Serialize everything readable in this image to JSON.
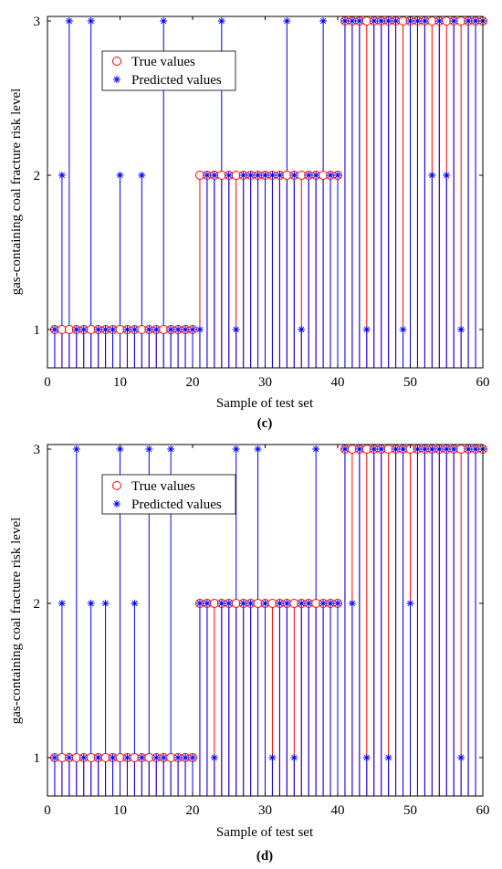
{
  "colors": {
    "true_values": "#ff0000",
    "predicted_values": "#0000ff"
  },
  "panels": [
    {
      "tag": "(c)"
    },
    {
      "tag": "(d)"
    }
  ],
  "chart_data": [
    {
      "type": "stem",
      "xlabel": "Sample of test set",
      "ylabel": "gas-containing coal fracture risk level",
      "xlim": [
        0,
        60
      ],
      "ylim": [
        0.75,
        3
      ],
      "xticks": [
        0,
        10,
        20,
        30,
        40,
        50,
        60
      ],
      "yticks": [
        1,
        2,
        3
      ],
      "legend_position": "top-left",
      "series": [
        {
          "name": "True values",
          "marker": "circle",
          "x": [
            1,
            2,
            3,
            4,
            5,
            6,
            7,
            8,
            9,
            10,
            11,
            12,
            13,
            14,
            15,
            16,
            17,
            18,
            19,
            20,
            21,
            22,
            23,
            24,
            25,
            26,
            27,
            28,
            29,
            30,
            31,
            32,
            33,
            34,
            35,
            36,
            37,
            38,
            39,
            40,
            41,
            42,
            43,
            44,
            45,
            46,
            47,
            48,
            49,
            50,
            51,
            52,
            53,
            54,
            55,
            56,
            57,
            58,
            59,
            60
          ],
          "values": [
            1,
            1,
            1,
            1,
            1,
            1,
            1,
            1,
            1,
            1,
            1,
            1,
            1,
            1,
            1,
            1,
            1,
            1,
            1,
            1,
            2,
            2,
            2,
            2,
            2,
            2,
            2,
            2,
            2,
            2,
            2,
            2,
            2,
            2,
            2,
            2,
            2,
            2,
            2,
            2,
            3,
            3,
            3,
            3,
            3,
            3,
            3,
            3,
            3,
            3,
            3,
            3,
            3,
            3,
            3,
            3,
            3,
            3,
            3,
            3
          ]
        },
        {
          "name": "Predicted values",
          "marker": "asterisk",
          "x": [
            1,
            2,
            3,
            4,
            5,
            6,
            7,
            8,
            9,
            10,
            11,
            12,
            13,
            14,
            15,
            16,
            17,
            18,
            19,
            20,
            21,
            22,
            23,
            24,
            25,
            26,
            27,
            28,
            29,
            30,
            31,
            32,
            33,
            34,
            35,
            36,
            37,
            38,
            39,
            40,
            41,
            42,
            43,
            44,
            45,
            46,
            47,
            48,
            49,
            50,
            51,
            52,
            53,
            54,
            55,
            56,
            57,
            58,
            59,
            60
          ],
          "values": [
            1,
            2,
            3,
            1,
            1,
            3,
            1,
            1,
            1,
            2,
            1,
            1,
            2,
            1,
            1,
            3,
            1,
            1,
            1,
            1,
            1,
            2,
            2,
            3,
            2,
            1,
            2,
            2,
            2,
            2,
            2,
            2,
            3,
            2,
            1,
            2,
            2,
            3,
            2,
            2,
            3,
            3,
            3,
            1,
            3,
            3,
            3,
            3,
            1,
            3,
            3,
            3,
            2,
            3,
            2,
            3,
            1,
            3,
            3,
            3
          ]
        }
      ]
    },
    {
      "type": "stem",
      "xlabel": "Sample of test set",
      "ylabel": "gas-containing coal fracture risk level",
      "xlim": [
        0,
        60
      ],
      "ylim": [
        0.75,
        3
      ],
      "xticks": [
        0,
        10,
        20,
        30,
        40,
        50,
        60
      ],
      "yticks": [
        1,
        2,
        3
      ],
      "legend_position": "top-left",
      "series": [
        {
          "name": "True values",
          "marker": "circle",
          "x": [
            1,
            2,
            3,
            4,
            5,
            6,
            7,
            8,
            9,
            10,
            11,
            12,
            13,
            14,
            15,
            16,
            17,
            18,
            19,
            20,
            21,
            22,
            23,
            24,
            25,
            26,
            27,
            28,
            29,
            30,
            31,
            32,
            33,
            34,
            35,
            36,
            37,
            38,
            39,
            40,
            41,
            42,
            43,
            44,
            45,
            46,
            47,
            48,
            49,
            50,
            51,
            52,
            53,
            54,
            55,
            56,
            57,
            58,
            59,
            60
          ],
          "values": [
            1,
            1,
            1,
            1,
            1,
            1,
            1,
            1,
            1,
            1,
            1,
            1,
            1,
            1,
            1,
            1,
            1,
            1,
            1,
            1,
            2,
            2,
            2,
            2,
            2,
            2,
            2,
            2,
            2,
            2,
            2,
            2,
            2,
            2,
            2,
            2,
            2,
            2,
            2,
            2,
            3,
            3,
            3,
            3,
            3,
            3,
            3,
            3,
            3,
            3,
            3,
            3,
            3,
            3,
            3,
            3,
            3,
            3,
            3,
            3
          ]
        },
        {
          "name": "Predicted values",
          "marker": "asterisk",
          "x": [
            1,
            2,
            3,
            4,
            5,
            6,
            7,
            8,
            9,
            10,
            11,
            12,
            13,
            14,
            15,
            16,
            17,
            18,
            19,
            20,
            21,
            22,
            23,
            24,
            25,
            26,
            27,
            28,
            29,
            30,
            31,
            32,
            33,
            34,
            35,
            36,
            37,
            38,
            39,
            40,
            41,
            42,
            43,
            44,
            45,
            46,
            47,
            48,
            49,
            50,
            51,
            52,
            53,
            54,
            55,
            56,
            57,
            58,
            59,
            60
          ],
          "values": [
            1,
            2,
            1,
            3,
            1,
            2,
            1,
            2,
            1,
            3,
            1,
            2,
            1,
            3,
            1,
            1,
            3,
            1,
            1,
            1,
            2,
            2,
            1,
            2,
            2,
            3,
            2,
            2,
            3,
            2,
            1,
            2,
            2,
            1,
            2,
            2,
            3,
            2,
            2,
            2,
            3,
            2,
            3,
            1,
            3,
            3,
            1,
            3,
            3,
            2,
            3,
            3,
            3,
            3,
            3,
            3,
            1,
            3,
            3,
            3
          ]
        }
      ]
    }
  ]
}
